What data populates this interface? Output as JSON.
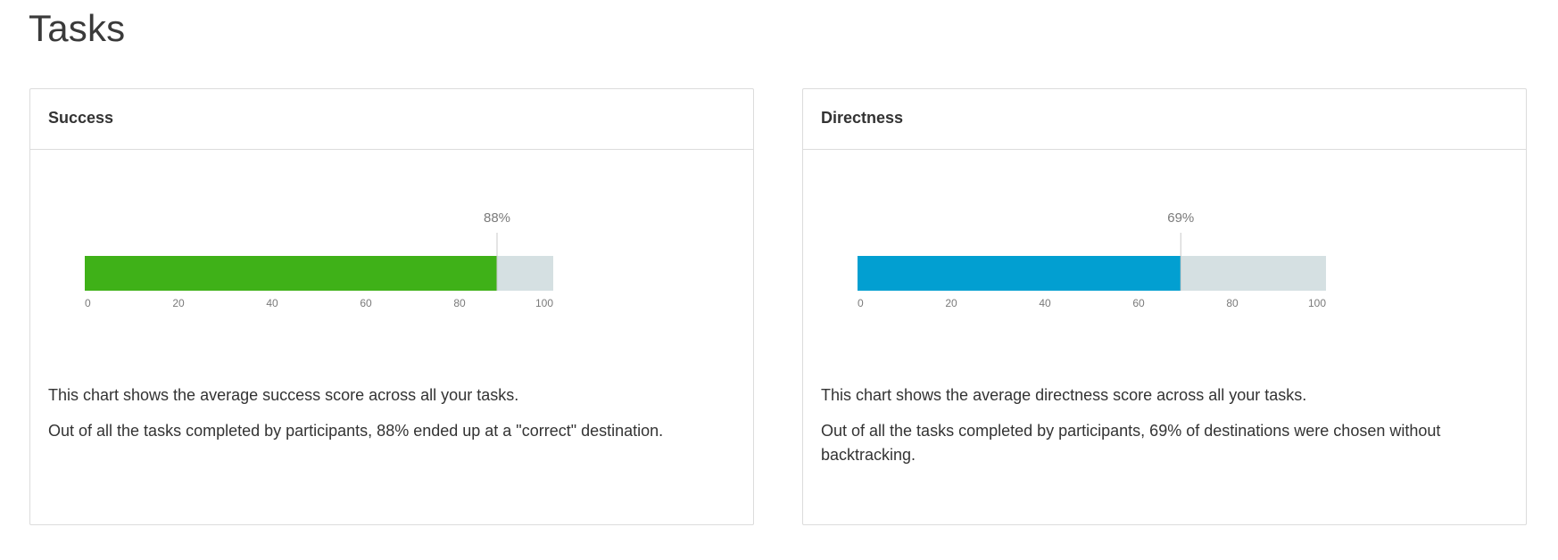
{
  "page": {
    "title": "Tasks"
  },
  "cards": [
    {
      "title": "Success",
      "description": [
        "This chart shows the average success score across all your tasks.",
        "Out of all the tasks completed by participants, 88% ended up at a \"correct\" destination."
      ]
    },
    {
      "title": "Directness",
      "description": [
        "This chart shows the average directness score across all your tasks.",
        "Out of all the tasks completed by participants, 69% of destinations were chosen without backtracking."
      ]
    }
  ],
  "chart_data": [
    {
      "type": "bar",
      "orientation": "horizontal",
      "values": [
        88
      ],
      "value_label": "88%",
      "xlim": [
        0,
        100
      ],
      "x_ticks": [
        0,
        20,
        40,
        60,
        80,
        100
      ],
      "bar_color": "#3fb118",
      "track_color": "#d5e0e2",
      "grid": false
    },
    {
      "type": "bar",
      "orientation": "horizontal",
      "values": [
        69
      ],
      "value_label": "69%",
      "xlim": [
        0,
        100
      ],
      "x_ticks": [
        0,
        20,
        40,
        60,
        80,
        100
      ],
      "bar_color": "#029fd1",
      "track_color": "#d5e0e2",
      "grid": false
    }
  ]
}
